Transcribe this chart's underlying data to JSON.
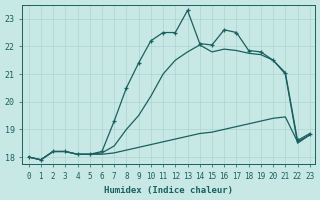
{
  "xlabel": "Humidex (Indice chaleur)",
  "background_color": "#c8e8e5",
  "grid_color": "#aad4d0",
  "line_color": "#1a6060",
  "xlim_min": -0.5,
  "xlim_max": 23.4,
  "ylim_min": 17.75,
  "ylim_max": 23.5,
  "yticks": [
    18,
    19,
    20,
    21,
    22,
    23
  ],
  "xticks": [
    0,
    1,
    2,
    3,
    4,
    5,
    6,
    7,
    8,
    9,
    10,
    11,
    12,
    13,
    14,
    15,
    16,
    17,
    18,
    19,
    20,
    21,
    22,
    23
  ],
  "line1_x": [
    0,
    1,
    2,
    3,
    4,
    5,
    6,
    7,
    8,
    9,
    10,
    11,
    12,
    13,
    14,
    15,
    16,
    17,
    18,
    19,
    20,
    21,
    22,
    23
  ],
  "line1_y": [
    18.0,
    17.9,
    18.2,
    18.2,
    18.1,
    18.1,
    18.1,
    18.15,
    18.25,
    18.35,
    18.45,
    18.55,
    18.65,
    18.75,
    18.85,
    18.9,
    19.0,
    19.1,
    19.2,
    19.3,
    19.4,
    19.45,
    18.55,
    18.8
  ],
  "line2_x": [
    0,
    1,
    2,
    3,
    4,
    5,
    6,
    7,
    8,
    9,
    10,
    11,
    12,
    13,
    14,
    15,
    16,
    17,
    18,
    19,
    20,
    21,
    22,
    23
  ],
  "line2_y": [
    18.0,
    17.9,
    18.2,
    18.2,
    18.1,
    18.1,
    18.15,
    18.4,
    19.0,
    19.5,
    20.2,
    21.0,
    21.5,
    21.8,
    22.05,
    21.8,
    21.9,
    21.85,
    21.75,
    21.7,
    21.5,
    21.0,
    18.5,
    18.8
  ],
  "line3_x": [
    0,
    1,
    2,
    3,
    4,
    5,
    6,
    7,
    8,
    9,
    10,
    11,
    12,
    13,
    14,
    15,
    16,
    17,
    18,
    19,
    20,
    21,
    22,
    23
  ],
  "line3_y": [
    18.0,
    17.9,
    18.2,
    18.2,
    18.1,
    18.1,
    18.2,
    19.3,
    20.5,
    21.4,
    22.2,
    22.5,
    22.5,
    23.3,
    22.1,
    22.05,
    22.6,
    22.5,
    21.85,
    21.8,
    21.5,
    21.05,
    18.6,
    18.85
  ],
  "xlabel_fontsize": 6.5,
  "tick_fontsize": 5.5,
  "linewidth": 0.9,
  "markersize": 3.5
}
